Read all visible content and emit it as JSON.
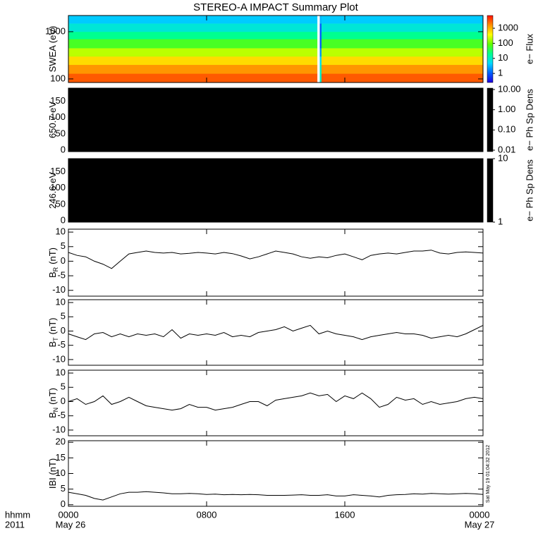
{
  "title": "STEREO-A IMPACT Summary Plot",
  "timestamp": "Sat May 19 01:04:32 2012",
  "colormap": [
    "#2000e0",
    "#0060ff",
    "#00d8ff",
    "#00ff90",
    "#60ff00",
    "#ffff00",
    "#ff9000",
    "#ff1000"
  ],
  "xaxis": {
    "xlim": [
      0,
      24
    ],
    "xticks": [
      {
        "value": 0,
        "label": "0000"
      },
      {
        "value": 8,
        "label": "0800"
      },
      {
        "value": 16,
        "label": "1600"
      },
      {
        "value": 24,
        "label": "0000"
      }
    ],
    "dates": [
      {
        "value": 0,
        "label": "May 26"
      },
      {
        "value": 24,
        "label": "May 27"
      }
    ],
    "row_labels": [
      "hhmm",
      "2011"
    ]
  },
  "chart_data": [
    {
      "type": "heatmap",
      "ylabel": {
        "symbol": "SWEA (eV)"
      },
      "log_y": true,
      "ylim": [
        84,
        2200
      ],
      "yticks": [
        100,
        1000
      ],
      "x_edges": [
        0,
        14.4,
        14.55,
        14.65,
        24
      ],
      "y_edges": [
        84,
        130,
        200,
        300,
        450,
        700,
        1000,
        1500,
        2200
      ],
      "z": [
        [
          3000,
          null,
          10,
          3000
        ],
        [
          1500,
          null,
          10,
          1500
        ],
        [
          600,
          null,
          5,
          600
        ],
        [
          200,
          null,
          2,
          200
        ],
        [
          60,
          null,
          1,
          60
        ],
        [
          20,
          null,
          1,
          20
        ],
        [
          8,
          null,
          1,
          8
        ],
        [
          4,
          null,
          3,
          4
        ]
      ],
      "colorbar": {
        "label": "e− Flux",
        "log": true,
        "zlim": [
          0.25,
          7000
        ],
        "ticks": [
          1,
          10,
          100,
          1000
        ]
      }
    },
    {
      "type": "blank",
      "fill": "#000000",
      "ylabel": {
        "symbol": "650.7 eV"
      },
      "ylim": [
        -4,
        190
      ],
      "yticks": [
        0,
        50,
        100,
        150
      ],
      "colorbar": {
        "label": "e− Ph Sp Dens",
        "log": true,
        "color": "#000000",
        "zlim": [
          0.0085,
          11.7
        ],
        "ticks": [
          {
            "value": 0.01,
            "label": "0.01"
          },
          {
            "value": 0.1,
            "label": "0.10"
          },
          {
            "value": 1,
            "label": "1.00"
          },
          {
            "value": 10,
            "label": "10.00"
          }
        ]
      }
    },
    {
      "type": "blank",
      "fill": "#000000",
      "ylabel": {
        "symbol": "246.6 eV"
      },
      "ylim": [
        -4,
        190
      ],
      "yticks": [
        0,
        50,
        100,
        150
      ],
      "colorbar": {
        "label": "e− Ph Sp Dens",
        "log": true,
        "color": "#000000",
        "zlim": [
          1,
          10
        ],
        "ticks": [
          1,
          10
        ]
      }
    },
    {
      "type": "line",
      "color": "#000000",
      "ylabel": {
        "symbol": "B",
        "subscript": "R",
        "unit": "(nT)"
      },
      "ylim": [
        -12,
        11
      ],
      "yticks": [
        -10,
        -5,
        0,
        5,
        10
      ],
      "x": [
        0,
        0.5,
        1,
        1.5,
        2,
        2.5,
        3,
        3.5,
        4,
        4.5,
        5,
        5.5,
        6,
        6.5,
        7,
        7.5,
        8,
        8.5,
        9,
        9.5,
        10,
        10.5,
        11,
        11.5,
        12,
        12.5,
        13,
        13.5,
        14,
        14.5,
        15,
        15.5,
        16,
        16.5,
        17,
        17.5,
        18,
        18.5,
        19,
        19.5,
        20,
        20.5,
        21,
        21.5,
        22,
        22.5,
        23,
        23.5,
        24
      ],
      "values": [
        3,
        2,
        1.5,
        0,
        -1,
        -2.5,
        0,
        2.5,
        3,
        3.5,
        3,
        2.8,
        3,
        2.5,
        2.7,
        3,
        2.8,
        2.5,
        3,
        2.6,
        1.8,
        0.8,
        1.5,
        2.5,
        3.5,
        3,
        2.5,
        1.5,
        1,
        1.5,
        1.2,
        2,
        2.5,
        1.5,
        0.5,
        2,
        2.5,
        2.8,
        2.5,
        3,
        3.5,
        3.5,
        3.8,
        2.8,
        2.5,
        3,
        3.2,
        3,
        2.8
      ]
    },
    {
      "type": "line",
      "color": "#000000",
      "ylabel": {
        "symbol": "B",
        "subscript": "T",
        "unit": "(nT)"
      },
      "ylim": [
        -12,
        11
      ],
      "yticks": [
        -10,
        -5,
        0,
        5,
        10
      ],
      "x": [
        0,
        0.5,
        1,
        1.5,
        2,
        2.5,
        3,
        3.5,
        4,
        4.5,
        5,
        5.5,
        6,
        6.5,
        7,
        7.5,
        8,
        8.5,
        9,
        9.5,
        10,
        10.5,
        11,
        11.5,
        12,
        12.5,
        13,
        13.5,
        14,
        14.5,
        15,
        15.5,
        16,
        16.5,
        17,
        17.5,
        18,
        18.5,
        19,
        19.5,
        20,
        20.5,
        21,
        21.5,
        22,
        22.5,
        23,
        23.5,
        24
      ],
      "values": [
        -1,
        -2,
        -3,
        -1,
        -0.5,
        -2,
        -1,
        -2,
        -1,
        -1.5,
        -1,
        -2,
        0.5,
        -2.5,
        -1,
        -1.5,
        -1,
        -1.5,
        -0.5,
        -2,
        -1.5,
        -2,
        -0.5,
        0,
        0.5,
        1.5,
        0,
        1,
        2,
        -1,
        0,
        -1,
        -1.5,
        -2,
        -3,
        -2,
        -1.5,
        -1,
        -0.5,
        -1,
        -1,
        -1.5,
        -2.5,
        -2,
        -1.5,
        -2,
        -1,
        0.5,
        2
      ]
    },
    {
      "type": "line",
      "color": "#000000",
      "ylabel": {
        "symbol": "B",
        "subscript": "N",
        "unit": "(nT)"
      },
      "ylim": [
        -12,
        11
      ],
      "yticks": [
        -10,
        -5,
        0,
        5,
        10
      ],
      "x": [
        0,
        0.5,
        1,
        1.5,
        2,
        2.5,
        3,
        3.5,
        4,
        4.5,
        5,
        5.5,
        6,
        6.5,
        7,
        7.5,
        8,
        8.5,
        9,
        9.5,
        10,
        10.5,
        11,
        11.5,
        12,
        12.5,
        13,
        13.5,
        14,
        14.5,
        15,
        15.5,
        16,
        16.5,
        17,
        17.5,
        18,
        18.5,
        19,
        19.5,
        20,
        20.5,
        21,
        21.5,
        22,
        22.5,
        23,
        23.5,
        24
      ],
      "values": [
        0,
        1,
        -1,
        0,
        2,
        -1,
        0,
        1.5,
        0,
        -1.5,
        -2,
        -2.5,
        -3,
        -2.5,
        -1,
        -2,
        -2,
        -3,
        -2.5,
        -2,
        -1,
        0,
        0,
        -1.5,
        0.5,
        1,
        1.5,
        2,
        3,
        2,
        2.5,
        0,
        2,
        1,
        3,
        1,
        -2,
        -1,
        1.5,
        0.5,
        1,
        -1,
        0,
        -1,
        -0.5,
        0,
        1,
        1.5,
        1
      ]
    },
    {
      "type": "line",
      "color": "#000000",
      "ylabel": {
        "symbol": "IBI (nT)"
      },
      "ylim": [
        -0.5,
        20.5
      ],
      "yticks": [
        0,
        5,
        10,
        15,
        20
      ],
      "x": [
        0,
        0.5,
        1,
        1.5,
        2,
        2.5,
        3,
        3.5,
        4,
        4.5,
        5,
        5.5,
        6,
        6.5,
        7,
        7.5,
        8,
        8.5,
        9,
        9.5,
        10,
        10.5,
        11,
        11.5,
        12,
        12.5,
        13,
        13.5,
        14,
        14.5,
        15,
        15.5,
        16,
        16.5,
        17,
        17.5,
        18,
        18.5,
        19,
        19.5,
        20,
        20.5,
        21,
        21.5,
        22,
        22.5,
        23,
        23.5,
        24
      ],
      "values": [
        4,
        3.5,
        3,
        2,
        1.5,
        2.5,
        3.5,
        4,
        4,
        4.2,
        4,
        3.8,
        3.5,
        3.5,
        3.6,
        3.5,
        3.3,
        3.4,
        3.2,
        3.3,
        3.2,
        3.3,
        3.2,
        3,
        3,
        3,
        3.1,
        3.2,
        3,
        3,
        3.2,
        2.8,
        2.8,
        3.2,
        3,
        2.8,
        2.5,
        3,
        3.2,
        3.3,
        3.5,
        3.4,
        3.6,
        3.5,
        3.4,
        3.5,
        3.6,
        3.5,
        3.3
      ]
    }
  ]
}
